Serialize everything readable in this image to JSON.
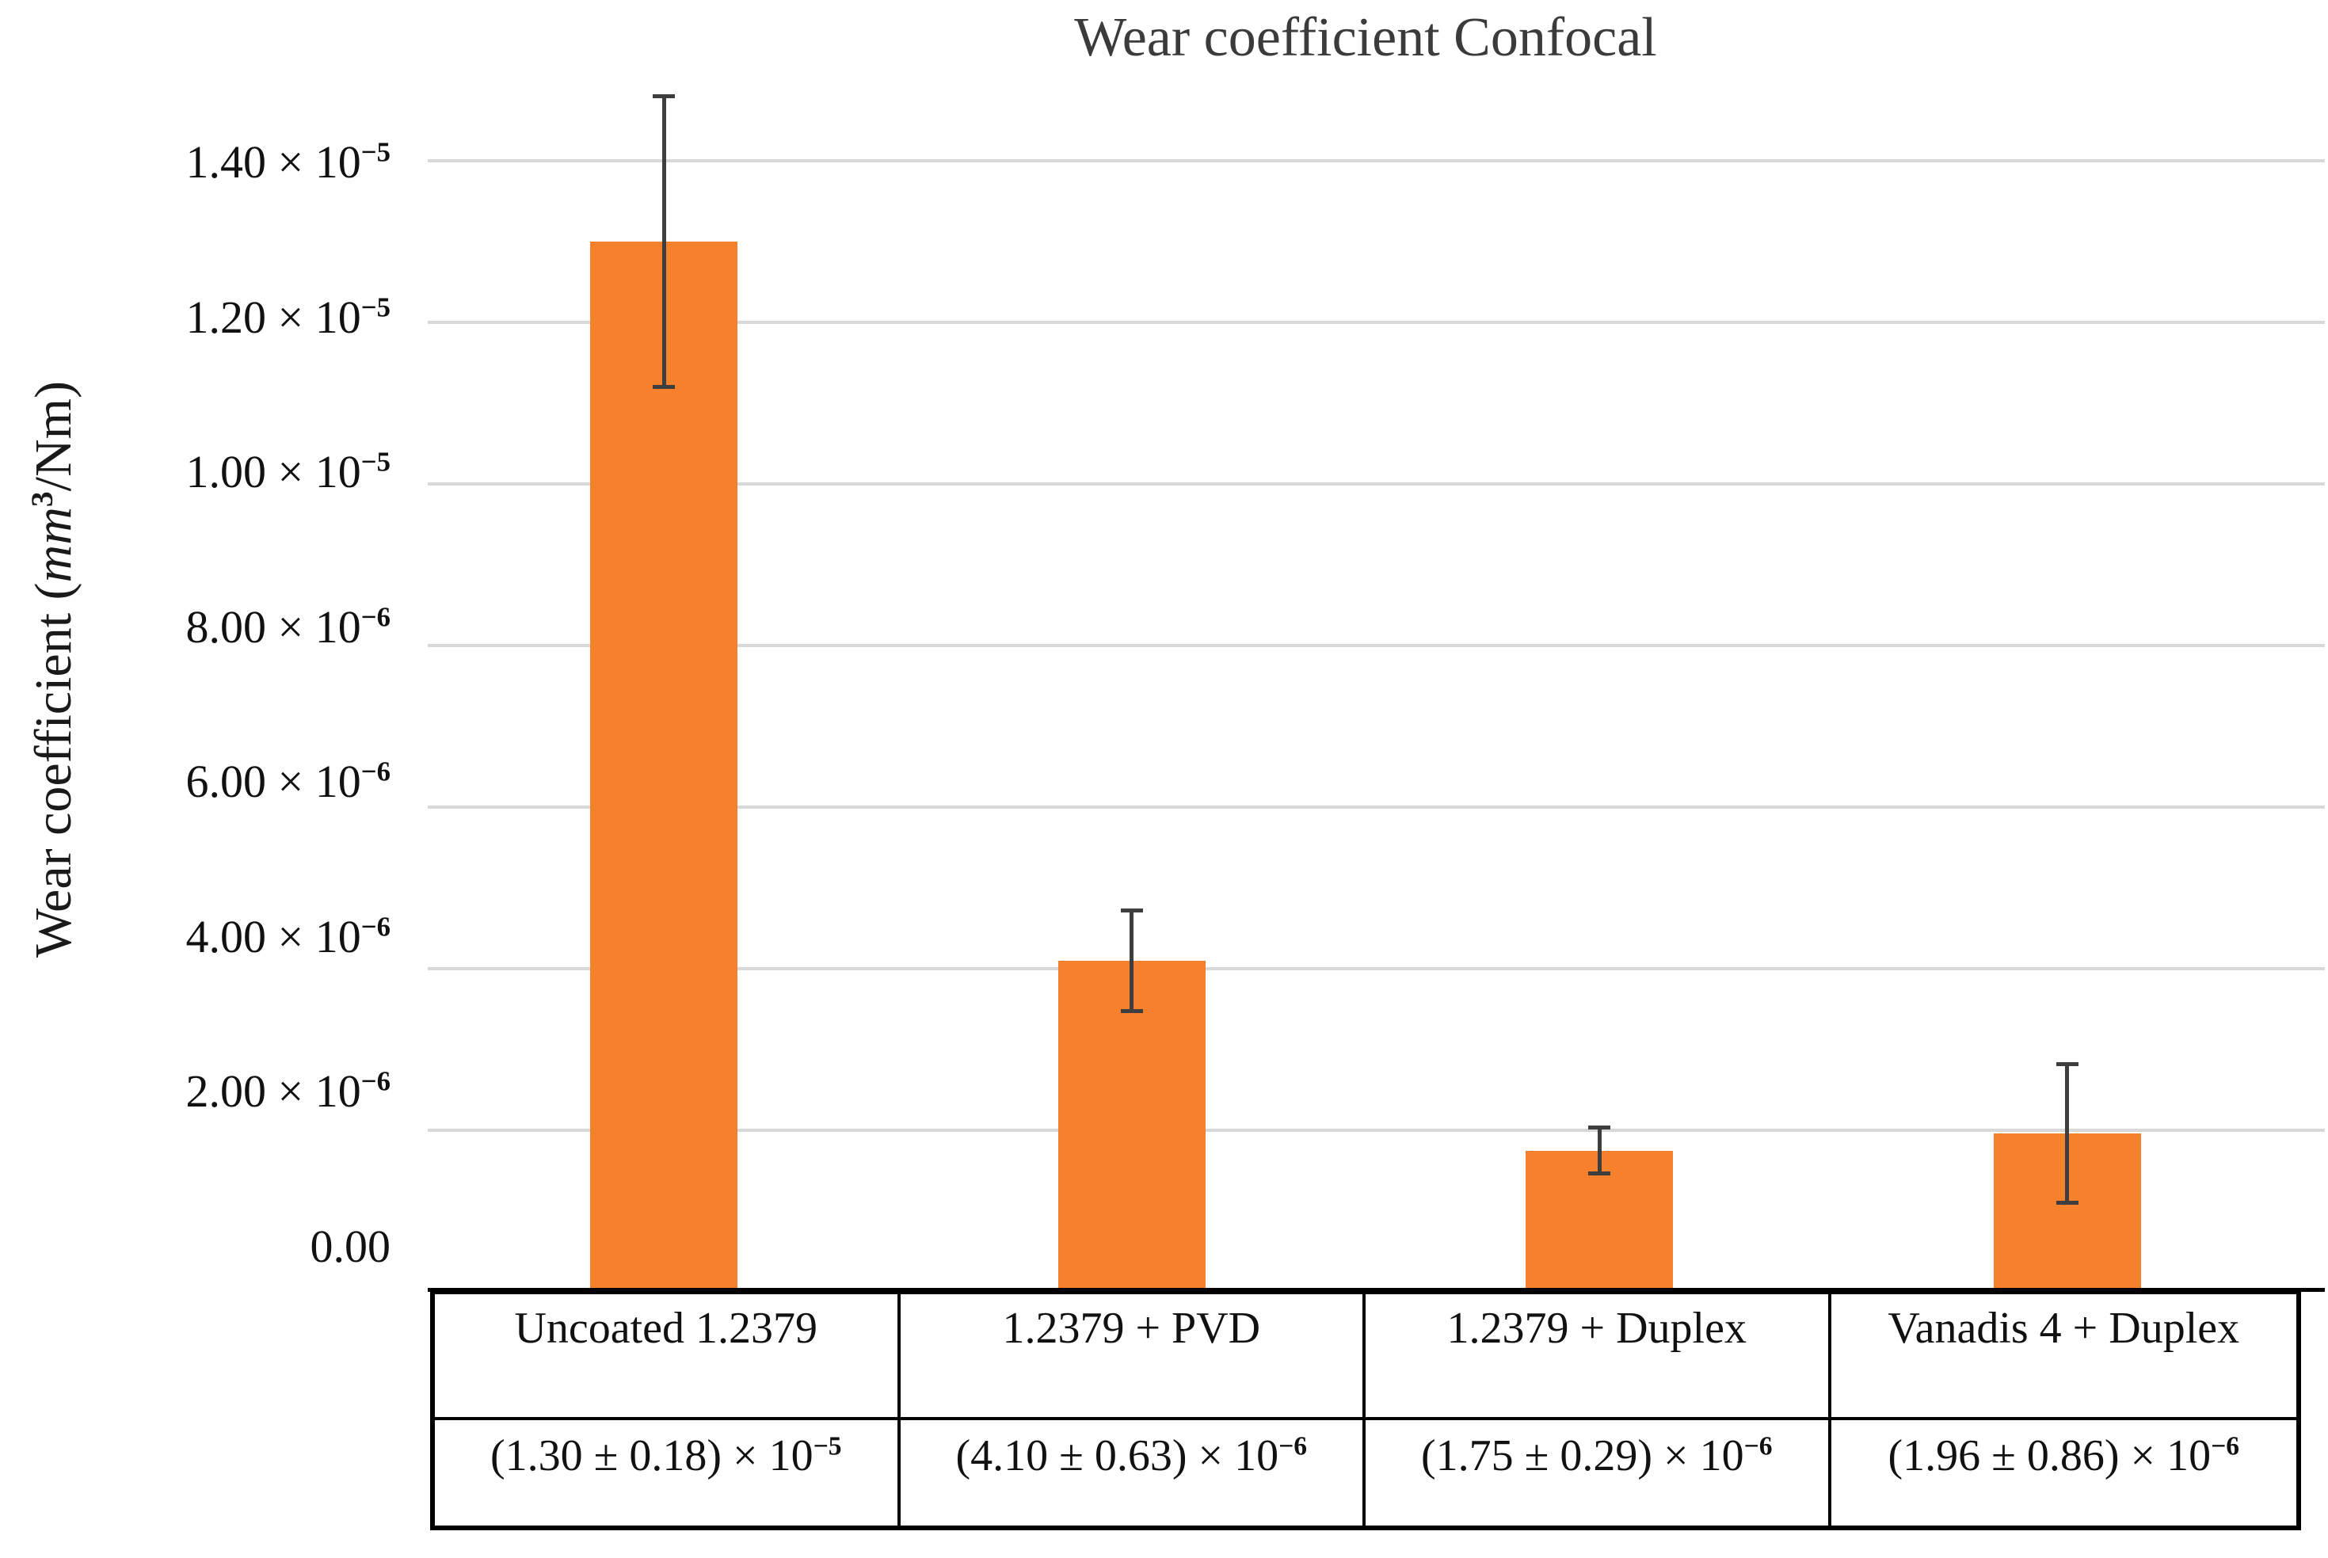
{
  "figure": {
    "title": "Wear coefficient Confocal",
    "y_axis_title": {
      "prefix": "Wear coefficient (",
      "italic_unit": "mm",
      "superscript": "3",
      "suffix": "/Nm)"
    }
  },
  "chart_data": {
    "type": "bar",
    "title": "Wear coefficient Confocal",
    "xlabel": "",
    "ylabel": "Wear coefficient (mm³/Nm)",
    "grid": "horizontal",
    "legend": "none",
    "ylim": [
      0,
      1.4e-05
    ],
    "bar_color": "#F7802C",
    "error_bar_color": "#3E3E3E",
    "gridline_color": "#D8D8D8",
    "categories": [
      "Uncoated 1.2379",
      "1.2379 + PVD",
      "1.2379 + Duplex",
      "Vanadis 4 + Duplex"
    ],
    "values": [
      1.3e-05,
      4.1e-06,
      1.75e-06,
      1.96e-06
    ],
    "errors": [
      1.8e-06,
      6.3e-07,
      2.9e-07,
      8.6e-07
    ],
    "yticks": [
      {
        "value": 1.4e-05,
        "mantissa": "1.40 × 10",
        "exponent": "−5"
      },
      {
        "value": 1.2e-05,
        "mantissa": "1.20 × 10",
        "exponent": "−5"
      },
      {
        "value": 1e-05,
        "mantissa": "1.00 × 10",
        "exponent": "−5"
      },
      {
        "value": 8e-06,
        "mantissa": "8.00 × 10",
        "exponent": "−6"
      },
      {
        "value": 6e-06,
        "mantissa": "6.00 × 10",
        "exponent": "−6"
      },
      {
        "value": 4e-06,
        "mantissa": "4.00 × 10",
        "exponent": "−6"
      },
      {
        "value": 2e-06,
        "mantissa": "2.00 × 10",
        "exponent": "−6"
      },
      {
        "value": 0,
        "mantissa": "0.00",
        "exponent": ""
      }
    ],
    "value_labels": [
      {
        "mantissa": "(1.30 ± 0.18) × 10",
        "exponent": "−5"
      },
      {
        "mantissa": "(4.10 ± 0.63) × 10",
        "exponent": "−6"
      },
      {
        "mantissa": "(1.75 ± 0.29) × 10",
        "exponent": "−6"
      },
      {
        "mantissa": "(1.96 ± 0.86) × 10",
        "exponent": "−6"
      }
    ]
  }
}
